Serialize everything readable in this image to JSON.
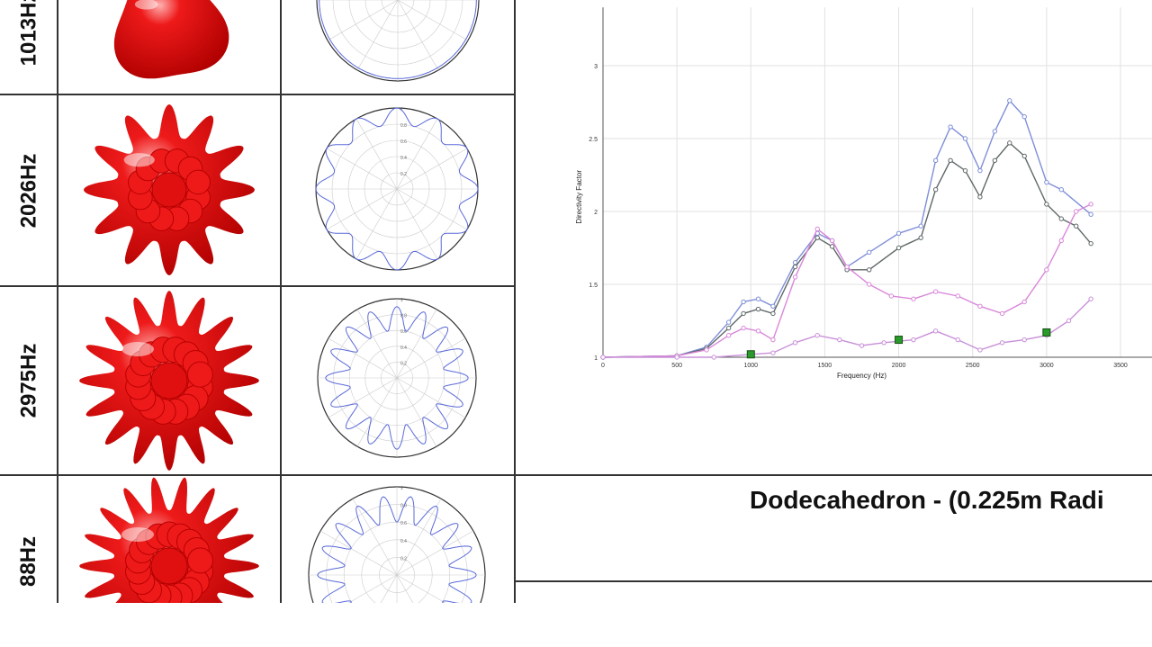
{
  "rows": [
    {
      "label": "1013Hz",
      "spikes": 0
    },
    {
      "label": "2026Hz",
      "spikes": 12
    },
    {
      "label": "2975Hz",
      "spikes": 16
    },
    {
      "label": "88Hz",
      "spikes": 18
    }
  ],
  "title": "Dodecahedron - (0.225m Radi",
  "polar_ticks": [
    "0.2",
    "0.4",
    "0.6",
    "0.8",
    "1"
  ],
  "colors": {
    "shape": "#ee1a1a",
    "polar": "#5a6ad8",
    "grid": "#333333"
  },
  "chart_data": {
    "type": "line",
    "xlabel": "Frequency (Hz)",
    "ylabel": "Directivity Factor",
    "xlim": [
      0,
      3300
    ],
    "ylim": [
      1,
      3.4
    ],
    "xticks": [
      0,
      500,
      1000,
      1500,
      2000,
      2500,
      3000,
      3500
    ],
    "yticks": [
      1,
      1.5,
      2,
      2.5,
      3
    ],
    "grid": true,
    "series": [
      {
        "color": "#7f8fd8",
        "points": [
          [
            0,
            1
          ],
          [
            500,
            1.01
          ],
          [
            700,
            1.07
          ],
          [
            850,
            1.24
          ],
          [
            950,
            1.38
          ],
          [
            1050,
            1.4
          ],
          [
            1150,
            1.35
          ],
          [
            1300,
            1.65
          ],
          [
            1450,
            1.85
          ],
          [
            1550,
            1.8
          ],
          [
            1650,
            1.62
          ],
          [
            1800,
            1.72
          ],
          [
            2000,
            1.85
          ],
          [
            2150,
            1.9
          ],
          [
            2250,
            2.35
          ],
          [
            2350,
            2.58
          ],
          [
            2450,
            2.5
          ],
          [
            2550,
            2.28
          ],
          [
            2650,
            2.55
          ],
          [
            2750,
            2.76
          ],
          [
            2850,
            2.65
          ],
          [
            3000,
            2.2
          ],
          [
            3100,
            2.15
          ],
          [
            3300,
            1.98
          ]
        ]
      },
      {
        "color": "#606868",
        "points": [
          [
            0,
            1
          ],
          [
            500,
            1.01
          ],
          [
            700,
            1.06
          ],
          [
            850,
            1.2
          ],
          [
            950,
            1.3
          ],
          [
            1050,
            1.33
          ],
          [
            1150,
            1.3
          ],
          [
            1300,
            1.62
          ],
          [
            1450,
            1.82
          ],
          [
            1550,
            1.76
          ],
          [
            1650,
            1.6
          ],
          [
            1800,
            1.6
          ],
          [
            2000,
            1.75
          ],
          [
            2150,
            1.82
          ],
          [
            2250,
            2.15
          ],
          [
            2350,
            2.35
          ],
          [
            2450,
            2.28
          ],
          [
            2550,
            2.1
          ],
          [
            2650,
            2.35
          ],
          [
            2750,
            2.47
          ],
          [
            2850,
            2.38
          ],
          [
            3000,
            2.05
          ],
          [
            3100,
            1.95
          ],
          [
            3200,
            1.9
          ],
          [
            3300,
            1.78
          ]
        ]
      },
      {
        "color": "#d987d9",
        "points": [
          [
            0,
            1
          ],
          [
            500,
            1.01
          ],
          [
            700,
            1.05
          ],
          [
            850,
            1.15
          ],
          [
            950,
            1.2
          ],
          [
            1050,
            1.18
          ],
          [
            1150,
            1.12
          ],
          [
            1300,
            1.55
          ],
          [
            1450,
            1.88
          ],
          [
            1550,
            1.8
          ],
          [
            1650,
            1.62
          ],
          [
            1800,
            1.5
          ],
          [
            1950,
            1.42
          ],
          [
            2100,
            1.4
          ],
          [
            2250,
            1.45
          ],
          [
            2400,
            1.42
          ],
          [
            2550,
            1.35
          ],
          [
            2700,
            1.3
          ],
          [
            2850,
            1.38
          ],
          [
            3000,
            1.6
          ],
          [
            3100,
            1.8
          ],
          [
            3200,
            2.0
          ],
          [
            3300,
            2.05
          ]
        ]
      },
      {
        "color": "#c990d9",
        "points": [
          [
            0,
            1
          ],
          [
            500,
            1
          ],
          [
            750,
            1.0
          ],
          [
            1000,
            1.02
          ],
          [
            1150,
            1.03
          ],
          [
            1300,
            1.1
          ],
          [
            1450,
            1.15
          ],
          [
            1600,
            1.12
          ],
          [
            1750,
            1.08
          ],
          [
            1900,
            1.1
          ],
          [
            2100,
            1.12
          ],
          [
            2250,
            1.18
          ],
          [
            2400,
            1.12
          ],
          [
            2550,
            1.05
          ],
          [
            2700,
            1.1
          ],
          [
            2850,
            1.12
          ],
          [
            3000,
            1.15
          ],
          [
            3150,
            1.25
          ],
          [
            3300,
            1.4
          ]
        ]
      }
    ],
    "markers": [
      [
        1000,
        1.02
      ],
      [
        2000,
        1.12
      ],
      [
        3000,
        1.17
      ]
    ]
  }
}
